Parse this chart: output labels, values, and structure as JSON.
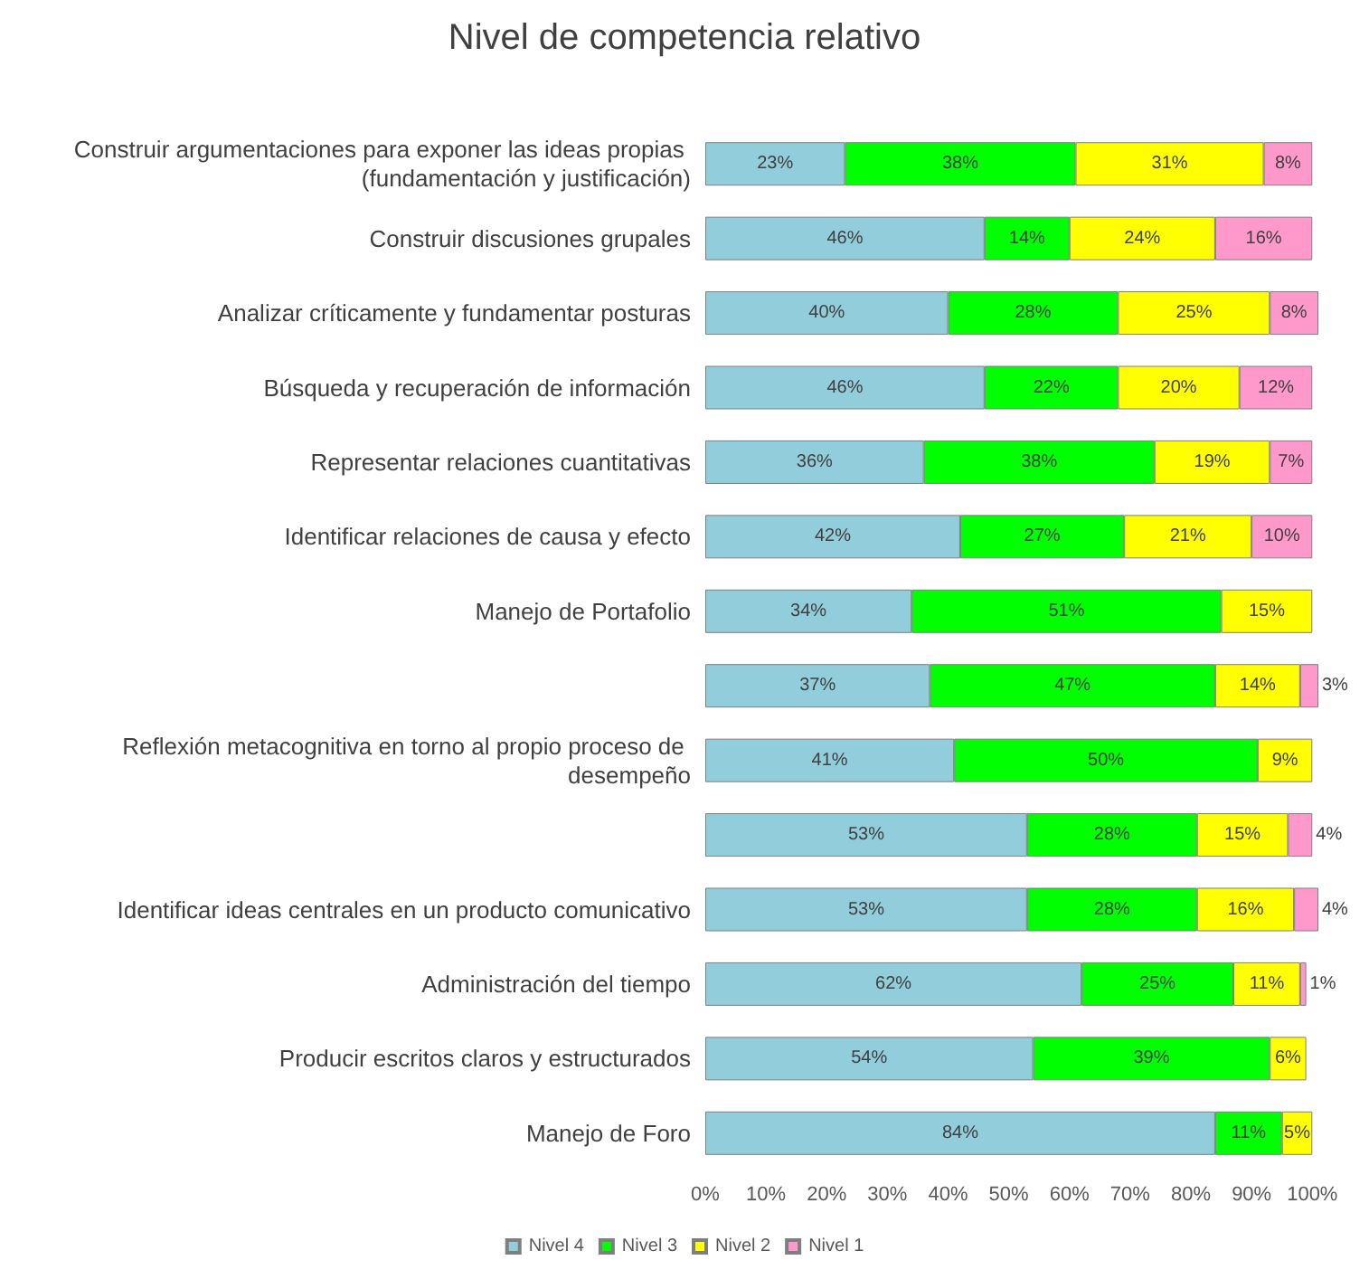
{
  "chart_data": {
    "type": "bar",
    "title": "Nivel de competencia relativo",
    "orientation": "horizontal",
    "stacked": true,
    "categories": [
      "Construir argumentaciones para exponer las ideas propias (fundamentación y justificación)",
      "Construir discusiones grupales",
      "Analizar críticamente y fundamentar posturas",
      "Búsqueda y recuperación de información",
      "Representar relaciones cuantitativas",
      "Identificar relaciones de causa y efecto",
      "Manejo de Portafolio",
      null,
      "Reflexión metacognitiva en torno al propio proceso de desempeño",
      null,
      "Identificar ideas centrales en un producto comunicativo",
      "Administración del tiempo",
      "Producir escritos claros y estructurados",
      "Manejo de Foro"
    ],
    "series": [
      {
        "name": "Nivel 4",
        "color": "#92cddc",
        "values": [
          23,
          46,
          40,
          46,
          36,
          42,
          34,
          37,
          41,
          53,
          53,
          62,
          54,
          84
        ],
        "value_labels": [
          "23%",
          "46%",
          "40%",
          "46%",
          "36%",
          "42%",
          "34%",
          "37%",
          "41%",
          "53%",
          "53%",
          "62%",
          "54%",
          "84%"
        ]
      },
      {
        "name": "Nivel 3",
        "color": "#00ff00",
        "values": [
          38,
          14,
          28,
          22,
          38,
          27,
          51,
          47,
          50,
          28,
          28,
          25,
          39,
          11
        ],
        "value_labels": [
          "38%",
          "14%",
          "28%",
          "22%",
          "38%",
          "27%",
          "51%",
          "47%",
          "50%",
          "28%",
          "28%",
          "25%",
          "39%",
          "11%"
        ]
      },
      {
        "name": "Nivel 2",
        "color": "#ffff00",
        "values": [
          31,
          24,
          25,
          20,
          19,
          21,
          15,
          14,
          9,
          15,
          16,
          11,
          6,
          5
        ],
        "value_labels": [
          "31%",
          "24%",
          "25%",
          "20%",
          "19%",
          "21%",
          "15%",
          "14%",
          "9%",
          "15%",
          "16%",
          "11%",
          "6%",
          "5%"
        ]
      },
      {
        "name": "Nivel 1",
        "color": "#ff99cc",
        "values": [
          8,
          16,
          8,
          12,
          7,
          10,
          null,
          3,
          null,
          4,
          4,
          1,
          null,
          null
        ],
        "value_labels": [
          "8%",
          "16%",
          "8%",
          "12%",
          "7%",
          "10%",
          null,
          "3%",
          null,
          "4%",
          "4%",
          "1%",
          null,
          null
        ]
      }
    ],
    "xlim": [
      0,
      101
    ],
    "xticks": [
      {
        "value": 0,
        "label": "0%"
      },
      {
        "value": 10,
        "label": "10%"
      },
      {
        "value": 20,
        "label": "20%"
      },
      {
        "value": 30,
        "label": "30%"
      },
      {
        "value": 40,
        "label": "40%"
      },
      {
        "value": 50,
        "label": "50%"
      },
      {
        "value": 60,
        "label": "60%"
      },
      {
        "value": 70,
        "label": "70%"
      },
      {
        "value": 80,
        "label": "80%"
      },
      {
        "value": 90,
        "label": "90%"
      },
      {
        "value": 100,
        "label": "100%"
      }
    ],
    "grid": false,
    "legend": "bottom"
  }
}
